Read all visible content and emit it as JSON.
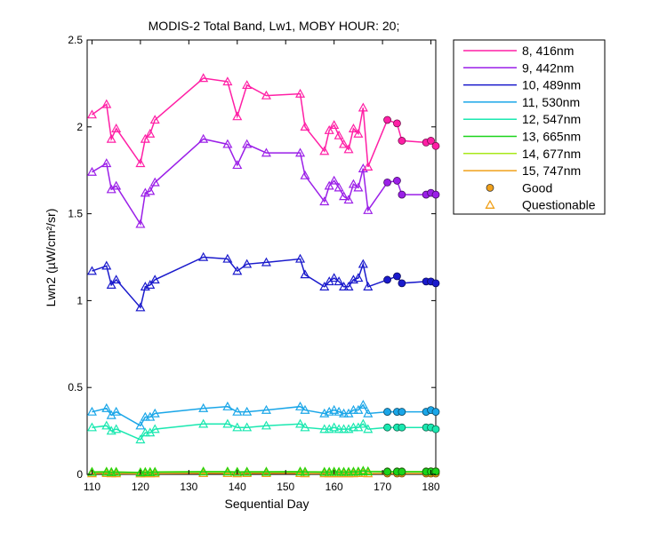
{
  "chart_data": {
    "type": "line",
    "title": "MODIS-2 Total Band, Lw1, MOBY HOUR: 20;",
    "xlabel": "Sequential Day",
    "ylabel": "Lwn2 (µW/cm²/sr)",
    "xlim": [
      109,
      181
    ],
    "ylim": [
      0,
      2.5
    ],
    "xticks": [
      110,
      120,
      130,
      140,
      150,
      160,
      170,
      180
    ],
    "yticks": [
      0,
      0.5,
      1,
      1.5,
      2,
      2.5
    ],
    "ytick_labels": [
      "0",
      "0.5",
      "1",
      "1.5",
      "2",
      "2.5"
    ],
    "grid": false,
    "legend_position": "outside-top-right",
    "x": [
      110,
      113,
      114,
      115,
      120,
      121,
      122,
      123,
      133,
      138,
      140,
      142,
      146,
      153,
      154,
      158,
      159,
      160,
      161,
      162,
      163,
      164,
      165,
      166,
      167,
      171,
      173,
      174,
      179,
      180,
      181
    ],
    "quality": [
      "Q",
      "Q",
      "Q",
      "Q",
      "Q",
      "Q",
      "Q",
      "Q",
      "Q",
      "Q",
      "Q",
      "Q",
      "Q",
      "Q",
      "Q",
      "Q",
      "Q",
      "Q",
      "Q",
      "Q",
      "Q",
      "Q",
      "Q",
      "Q",
      "Q",
      "G",
      "G",
      "G",
      "G",
      "G",
      "G"
    ],
    "series": [
      {
        "name": "8, 416nm",
        "color": "#ff1fa5",
        "values": [
          2.07,
          2.13,
          1.93,
          1.99,
          1.79,
          1.93,
          1.96,
          2.04,
          2.28,
          2.26,
          2.06,
          2.24,
          2.18,
          2.19,
          2.0,
          1.86,
          1.98,
          2.01,
          1.95,
          1.9,
          1.87,
          1.99,
          1.96,
          2.11,
          1.77,
          2.04,
          2.02,
          1.92,
          1.91,
          1.92,
          1.89
        ]
      },
      {
        "name": "9, 442nm",
        "color": "#9b1fe8",
        "values": [
          1.74,
          1.79,
          1.64,
          1.66,
          1.44,
          1.62,
          1.63,
          1.68,
          1.93,
          1.9,
          1.78,
          1.9,
          1.85,
          1.85,
          1.72,
          1.57,
          1.66,
          1.69,
          1.65,
          1.6,
          1.58,
          1.67,
          1.65,
          1.76,
          1.52,
          1.68,
          1.69,
          1.61,
          1.61,
          1.62,
          1.61
        ]
      },
      {
        "name": "10, 489nm",
        "color": "#1a1acc",
        "values": [
          1.17,
          1.2,
          1.09,
          1.12,
          0.96,
          1.08,
          1.09,
          1.12,
          1.25,
          1.24,
          1.17,
          1.21,
          1.22,
          1.24,
          1.15,
          1.08,
          1.11,
          1.13,
          1.11,
          1.08,
          1.08,
          1.12,
          1.13,
          1.21,
          1.08,
          1.12,
          1.14,
          1.1,
          1.11,
          1.11,
          1.1
        ]
      },
      {
        "name": "11, 530nm",
        "color": "#1aa6e8",
        "values": [
          0.36,
          0.38,
          0.34,
          0.36,
          0.28,
          0.33,
          0.33,
          0.35,
          0.38,
          0.39,
          0.36,
          0.36,
          0.37,
          0.39,
          0.37,
          0.35,
          0.36,
          0.37,
          0.36,
          0.35,
          0.35,
          0.37,
          0.37,
          0.4,
          0.35,
          0.36,
          0.36,
          0.36,
          0.36,
          0.37,
          0.36
        ]
      },
      {
        "name": "12, 547nm",
        "color": "#1ae8b0",
        "values": [
          0.27,
          0.28,
          0.25,
          0.26,
          0.2,
          0.24,
          0.24,
          0.26,
          0.29,
          0.29,
          0.27,
          0.27,
          0.28,
          0.29,
          0.27,
          0.26,
          0.26,
          0.27,
          0.26,
          0.26,
          0.26,
          0.27,
          0.27,
          0.29,
          0.26,
          0.27,
          0.27,
          0.27,
          0.27,
          0.27,
          0.26
        ]
      },
      {
        "name": "13, 665nm",
        "color": "#1ad41a",
        "values": [
          0.013,
          0.014,
          0.012,
          0.013,
          0.01,
          0.012,
          0.012,
          0.013,
          0.015,
          0.015,
          0.013,
          0.014,
          0.014,
          0.015,
          0.014,
          0.013,
          0.013,
          0.014,
          0.013,
          0.013,
          0.013,
          0.014,
          0.015,
          0.019,
          0.016,
          0.015,
          0.015,
          0.015,
          0.015,
          0.016,
          0.016
        ]
      },
      {
        "name": "14, 677nm",
        "color": "#a8e81a",
        "values": [
          0.015,
          0.016,
          0.014,
          0.015,
          0.012,
          0.014,
          0.014,
          0.015,
          0.017,
          0.017,
          0.015,
          0.016,
          0.016,
          0.017,
          0.016,
          0.015,
          0.015,
          0.016,
          0.015,
          0.015,
          0.015,
          0.016,
          0.017,
          0.021,
          0.018,
          0.017,
          0.017,
          0.017,
          0.017,
          0.018,
          0.018
        ]
      },
      {
        "name": "15, 747nm",
        "color": "#f0a01a",
        "values": [
          0.005,
          0.006,
          0.005,
          0.005,
          0.004,
          0.005,
          0.005,
          0.005,
          0.006,
          0.006,
          0.005,
          0.006,
          0.006,
          0.006,
          0.005,
          0.005,
          0.005,
          0.005,
          0.005,
          0.005,
          0.005,
          0.005,
          0.006,
          0.006,
          0.005,
          0.005,
          0.005,
          0.005,
          0.005,
          0.005,
          0.005
        ]
      }
    ],
    "markers": [
      {
        "label": "Good",
        "symbol": "filled-circle",
        "color": "#f0a01a"
      },
      {
        "label": "Questionable",
        "symbol": "open-triangle",
        "color": "#f0a01a"
      }
    ]
  }
}
